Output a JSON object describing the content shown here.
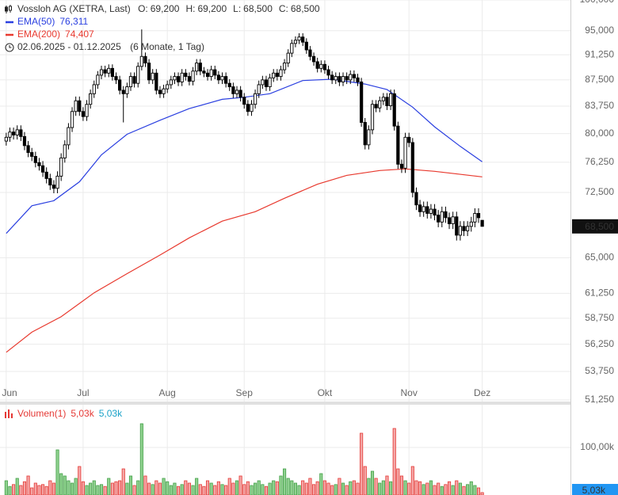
{
  "chart_data": {
    "type": "candlestick",
    "title": "Vossloh AG (XETRA, Last)",
    "header_values": [
      {
        "key": "O:",
        "text": "69,200"
      },
      {
        "key": "H:",
        "text": "69,200"
      },
      {
        "key": "L:",
        "text": "68,500"
      },
      {
        "key": "C:",
        "text": "68,500"
      }
    ],
    "period": "02.06.2025 - 01.12.2025",
    "period_note": "(6 Monate, 1 Tag)",
    "log_scale": true,
    "grid": true,
    "xlim": [
      -1.7,
      154.1
    ],
    "xticks": [
      {
        "value": 0,
        "label": "Jun"
      },
      {
        "value": 21,
        "label": "Jul"
      },
      {
        "value": 44,
        "label": "Aug"
      },
      {
        "value": 65,
        "label": "Sep"
      },
      {
        "value": 87,
        "label": "Okt"
      },
      {
        "value": 110,
        "label": "Nov"
      },
      {
        "value": 130,
        "label": "Dez"
      }
    ],
    "ylim": [
      51.25,
      100
    ],
    "yticks": [
      {
        "value": 100,
        "label": "100,000"
      },
      {
        "value": 95,
        "label": "95,000"
      },
      {
        "value": 91.25,
        "label": "91,250"
      },
      {
        "value": 87.5,
        "label": "87,500"
      },
      {
        "value": 83.75,
        "label": "83,750"
      },
      {
        "value": 80,
        "label": "80,000"
      },
      {
        "value": 76.25,
        "label": "76,250"
      },
      {
        "value": 72.5,
        "label": "72,500"
      },
      {
        "value": 65,
        "label": "65,000"
      },
      {
        "value": 61.25,
        "label": "61,250"
      },
      {
        "value": 58.75,
        "label": "58,750"
      },
      {
        "value": 56.25,
        "label": "56,250"
      },
      {
        "value": 53.75,
        "label": "53,750"
      },
      {
        "value": 51.25,
        "label": "51,250"
      }
    ],
    "up_color": "#ffffff",
    "down_color": "#000000",
    "candle_color": "#000000",
    "open": [
      79.0,
      79.5,
      80.2,
      79.8,
      80.5,
      79.6,
      78.4,
      77.5,
      77.0,
      76.2,
      75.8,
      75.0,
      74.2,
      73.4,
      73.0,
      74.5,
      76.8,
      78.5,
      80.8,
      83.0,
      84.5,
      83.0,
      82.3,
      84.0,
      85.5,
      86.8,
      88.2,
      89.0,
      88.5,
      89.2,
      88.0,
      87.5,
      86.0,
      85.5,
      86.5,
      88.0,
      87.0,
      89.5,
      91.0,
      90.0,
      87.5,
      88.5,
      86.0,
      85.5,
      86.2,
      86.8,
      87.5,
      88.0,
      87.2,
      88.5,
      88.0,
      87.3,
      88.8,
      90.0,
      88.8,
      88.5,
      88.0,
      89.0,
      88.2,
      87.5,
      88.0,
      87.0,
      86.5,
      85.5,
      86.0,
      85.0,
      84.0,
      83.0,
      84.0,
      85.5,
      86.8,
      87.5,
      86.5,
      87.8,
      88.5,
      88.0,
      89.0,
      90.0,
      91.5,
      93.0,
      93.5,
      94.0,
      93.2,
      92.0,
      91.0,
      90.2,
      89.2,
      89.8,
      89.0,
      88.2,
      87.5,
      88.0,
      87.2,
      88.0,
      87.5,
      88.3,
      87.8,
      87.2,
      81.5,
      78.5,
      80.5,
      84.0,
      83.5,
      84.5,
      85.0,
      83.8,
      85.5,
      81.0,
      76.0,
      75.5,
      79.5,
      78.8,
      72.5,
      71.0,
      70.2,
      70.8,
      70.0,
      70.5,
      69.8,
      69.0,
      70.2,
      69.5,
      68.8,
      69.6,
      67.5,
      68.5,
      68.0,
      68.5,
      69.0,
      70.0,
      69.2
    ],
    "high": [
      80.1,
      80.8,
      80.8,
      81.1,
      81.1,
      80.2,
      79.0,
      78.1,
      77.6,
      76.8,
      76.4,
      75.6,
      74.8,
      74.0,
      75.1,
      77.4,
      79.1,
      81.4,
      83.6,
      85.1,
      85.1,
      83.6,
      84.6,
      86.1,
      87.4,
      88.8,
      89.6,
      89.6,
      89.8,
      89.8,
      88.6,
      88.1,
      86.6,
      87.1,
      88.6,
      88.6,
      90.1,
      95.2,
      91.6,
      90.6,
      89.1,
      89.1,
      86.6,
      86.8,
      87.4,
      88.1,
      88.6,
      88.6,
      89.1,
      89.1,
      88.6,
      89.4,
      90.6,
      90.6,
      89.4,
      89.1,
      89.6,
      89.6,
      88.8,
      88.6,
      88.6,
      87.6,
      87.1,
      86.6,
      86.6,
      85.6,
      84.6,
      84.6,
      86.1,
      87.4,
      88.1,
      88.1,
      88.4,
      89.1,
      89.1,
      89.6,
      90.6,
      92.1,
      93.6,
      94.1,
      94.6,
      94.6,
      93.8,
      92.6,
      91.6,
      90.8,
      90.4,
      90.4,
      89.6,
      88.8,
      88.6,
      88.6,
      88.6,
      88.6,
      88.9,
      88.9,
      88.4,
      87.8,
      82.1,
      81.1,
      84.6,
      84.6,
      85.1,
      85.6,
      85.6,
      86.1,
      86.1,
      81.6,
      76.6,
      80.1,
      80.1,
      79.4,
      73.1,
      71.6,
      71.4,
      71.4,
      71.1,
      71.1,
      70.4,
      70.8,
      70.8,
      70.1,
      70.2,
      70.2,
      69.1,
      69.1,
      69.1,
      69.6,
      70.6,
      70.6,
      69.2
    ],
    "low": [
      78.4,
      78.9,
      79.2,
      79.2,
      79.0,
      77.8,
      76.9,
      76.4,
      75.6,
      75.2,
      74.4,
      73.6,
      72.8,
      72.4,
      72.4,
      73.9,
      76.2,
      77.9,
      80.2,
      82.4,
      82.4,
      81.7,
      81.7,
      83.4,
      84.9,
      86.2,
      87.6,
      87.9,
      87.9,
      87.4,
      86.9,
      85.4,
      81.5,
      84.9,
      85.9,
      86.4,
      86.4,
      88.9,
      89.4,
      86.9,
      86.9,
      85.4,
      84.9,
      84.9,
      85.6,
      86.2,
      86.9,
      86.6,
      86.6,
      87.4,
      86.7,
      86.7,
      88.2,
      88.2,
      87.9,
      87.4,
      87.4,
      87.6,
      86.9,
      86.9,
      86.4,
      85.9,
      84.9,
      84.9,
      84.4,
      83.4,
      82.4,
      82.4,
      83.4,
      84.9,
      86.2,
      85.9,
      85.9,
      87.2,
      87.4,
      87.4,
      88.4,
      89.4,
      90.9,
      92.4,
      92.9,
      92.6,
      91.4,
      90.4,
      89.6,
      88.6,
      88.6,
      88.4,
      87.6,
      86.9,
      86.9,
      86.6,
      86.6,
      86.9,
      86.9,
      87.2,
      86.6,
      80.9,
      77.9,
      77.9,
      79.9,
      82.9,
      82.9,
      83.9,
      83.2,
      83.2,
      80.4,
      75.4,
      74.9,
      74.9,
      78.2,
      71.9,
      70.4,
      69.6,
      69.6,
      69.4,
      69.4,
      69.2,
      68.4,
      68.4,
      68.9,
      68.2,
      68.2,
      66.9,
      66.9,
      67.4,
      67.4,
      67.9,
      68.4,
      68.9,
      68.5
    ],
    "close": [
      79.5,
      80.2,
      79.8,
      80.5,
      79.6,
      78.4,
      77.5,
      77.0,
      76.2,
      75.8,
      75.0,
      74.2,
      73.4,
      73.0,
      74.5,
      76.8,
      78.5,
      80.8,
      83.0,
      84.5,
      83.0,
      82.3,
      84.0,
      85.5,
      86.8,
      88.2,
      89.0,
      88.5,
      89.2,
      88.0,
      87.5,
      86.0,
      85.5,
      86.5,
      88.0,
      87.0,
      89.5,
      91.0,
      90.0,
      87.5,
      88.5,
      86.0,
      85.5,
      86.2,
      86.8,
      87.5,
      88.0,
      87.2,
      88.5,
      88.0,
      87.3,
      88.8,
      90.0,
      88.8,
      88.5,
      88.0,
      89.0,
      88.2,
      87.5,
      88.0,
      87.0,
      86.5,
      85.5,
      86.0,
      85.0,
      84.0,
      83.0,
      84.0,
      85.5,
      86.8,
      87.5,
      86.5,
      87.8,
      88.5,
      88.0,
      89.0,
      90.0,
      91.5,
      93.0,
      93.5,
      94.0,
      93.2,
      92.0,
      91.0,
      90.2,
      89.2,
      89.8,
      89.0,
      88.2,
      87.5,
      88.0,
      87.2,
      88.0,
      87.5,
      88.3,
      87.8,
      87.2,
      81.5,
      78.5,
      80.5,
      84.0,
      83.5,
      84.5,
      85.0,
      83.8,
      85.5,
      81.0,
      76.0,
      75.5,
      79.5,
      78.8,
      72.5,
      71.0,
      70.2,
      70.8,
      70.0,
      70.5,
      69.8,
      69.0,
      70.2,
      69.5,
      68.8,
      69.6,
      67.5,
      68.5,
      68.0,
      68.5,
      69.0,
      70.0,
      69.5,
      68.5
    ],
    "last_label": "68,500",
    "overlays": [
      {
        "name": "EMA(50)",
        "value_label": "76,311",
        "color": "#2a3fe0",
        "x": [
          0,
          7,
          13,
          20,
          26,
          33,
          42,
          50,
          59,
          65,
          72,
          81,
          89,
          98,
          104,
          111,
          117,
          124,
          130
        ],
        "values": [
          67.7,
          70.9,
          71.5,
          73.8,
          77.2,
          79.9,
          81.8,
          83.4,
          84.7,
          85.0,
          85.5,
          87.4,
          87.6,
          86.9,
          86.1,
          83.6,
          80.9,
          78.3,
          76.311
        ]
      },
      {
        "name": "EMA(200)",
        "value_label": "74,407",
        "color": "#e8392e",
        "x": [
          0,
          7,
          15,
          24,
          33,
          42,
          50,
          59,
          68,
          76,
          85,
          93,
          102,
          109,
          117,
          130
        ],
        "values": [
          55.5,
          57.4,
          58.9,
          61.3,
          63.3,
          65.3,
          67.2,
          69.1,
          70.2,
          71.8,
          73.5,
          74.6,
          75.2,
          75.4,
          75.1,
          74.407
        ]
      }
    ],
    "volume": {
      "name": "Volumen(1)",
      "legend_labels": [
        "5,03k",
        "5,03k"
      ],
      "last_label": "5,03k",
      "up_color": "#8fd18f",
      "up_stroke": "#43a047",
      "down_color": "#f4a6a6",
      "down_stroke": "#e53935",
      "ylim": [
        0,
        190000
      ],
      "yticks": [
        {
          "value": 100000,
          "label": "100,00k"
        }
      ],
      "values": [
        30000,
        18000,
        22000,
        35000,
        20000,
        28000,
        40000,
        15000,
        25000,
        20000,
        22000,
        18000,
        30000,
        25000,
        95000,
        45000,
        40000,
        30000,
        25000,
        35000,
        60000,
        28000,
        20000,
        25000,
        30000,
        20000,
        22000,
        18000,
        35000,
        25000,
        28000,
        30000,
        55000,
        25000,
        40000,
        20000,
        30000,
        150000,
        40000,
        25000,
        22000,
        30000,
        25000,
        35000,
        28000,
        20000,
        25000,
        18000,
        22000,
        30000,
        25000,
        20000,
        35000,
        22000,
        18000,
        30000,
        25000,
        20000,
        28000,
        22000,
        20000,
        35000,
        25000,
        30000,
        40000,
        22000,
        28000,
        20000,
        25000,
        30000,
        22000,
        18000,
        25000,
        30000,
        28000,
        40000,
        55000,
        35000,
        30000,
        25000,
        20000,
        30000,
        25000,
        35000,
        22000,
        28000,
        45000,
        30000,
        25000,
        20000,
        22000,
        35000,
        25000,
        20000,
        28000,
        30000,
        25000,
        130000,
        60000,
        35000,
        50000,
        35000,
        25000,
        30000,
        40000,
        28000,
        140000,
        55000,
        40000,
        30000,
        25000,
        60000,
        30000,
        28000,
        22000,
        25000,
        30000,
        20000,
        25000,
        18000,
        22000,
        28000,
        20000,
        30000,
        25000,
        18000,
        22000,
        28000,
        20000,
        15000,
        5030
      ]
    }
  }
}
